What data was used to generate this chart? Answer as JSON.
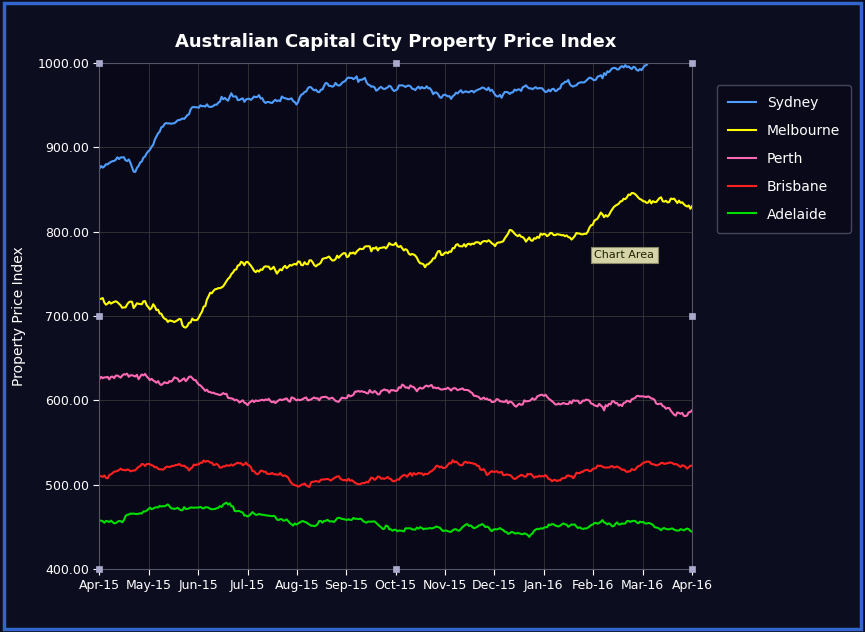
{
  "title": "Australian Capital City Property Price Index",
  "ylabel": "Property Price Index",
  "xlabel": "",
  "title_color": "#ffffff",
  "axis_label_color": "#ffffff",
  "tick_color": "#ffffff",
  "grid_color": "#404040",
  "fig_bg_color": "#0d0d20",
  "plot_bg_color": "#080818",
  "border_color": "#3366cc",
  "ylim": [
    400,
    1000
  ],
  "yticks": [
    400.0,
    500.0,
    600.0,
    700.0,
    800.0,
    900.0,
    1000.0
  ],
  "xtick_labels": [
    "Apr-15",
    "May-15",
    "Jun-15",
    "Jul-15",
    "Aug-15",
    "Sep-15",
    "Oct-15",
    "Nov-15",
    "Dec-15",
    "Jan-16",
    "Feb-16",
    "Mar-16",
    "Apr-16"
  ],
  "cities": [
    "Sydney",
    "Melbourne",
    "Perth",
    "Brisbane",
    "Adelaide"
  ],
  "colors": {
    "Sydney": "#4f9eff",
    "Melbourne": "#ffff00",
    "Perth": "#ff69b4",
    "Brisbane": "#ff2020",
    "Adelaide": "#00dd00"
  },
  "chart_area_label": "Chart Area",
  "n_points": 365
}
